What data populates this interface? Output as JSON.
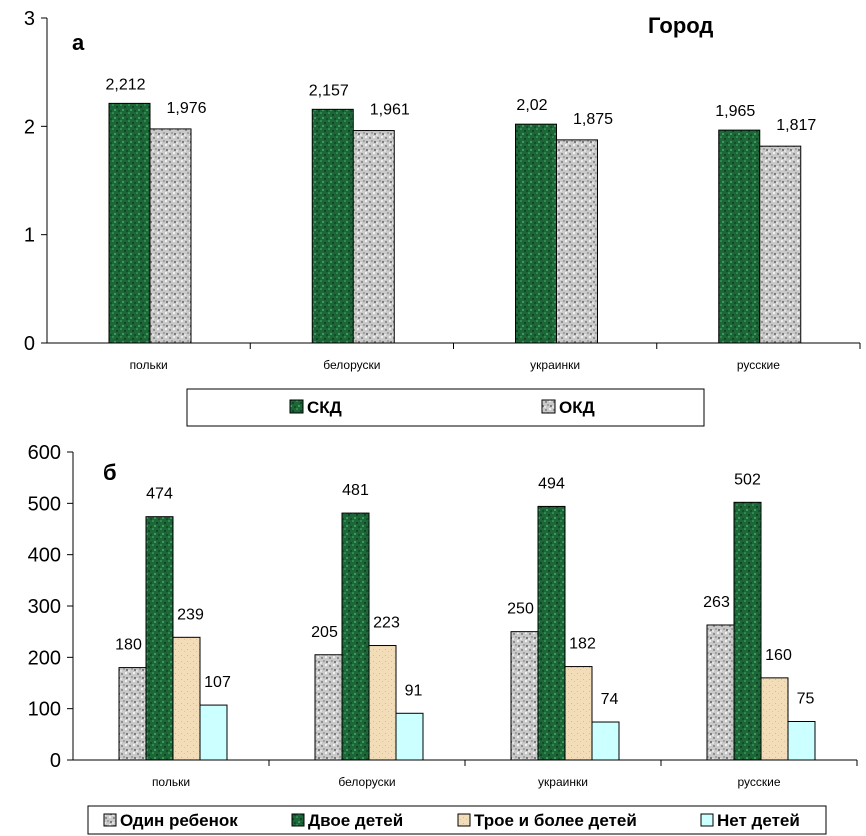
{
  "chart_data": [
    {
      "type": "bar",
      "panel_label": "а",
      "title": "Город",
      "categories": [
        "польки",
        "белоруски",
        "украинки",
        "русские"
      ],
      "series": [
        {
          "name": "СКД",
          "values": [
            2.212,
            2.157,
            2.02,
            1.965
          ],
          "labels": [
            "2,212",
            "2,157",
            "2,02",
            "1,965"
          ],
          "color": "#1f6b3a"
        },
        {
          "name": "ОКД",
          "values": [
            1.976,
            1.961,
            1.875,
            1.817
          ],
          "labels": [
            "1,976",
            "1,961",
            "1,875",
            "1,817"
          ],
          "color": "#c8c8c8"
        }
      ],
      "ylim": [
        0,
        3
      ],
      "yticks": [
        "0",
        "1",
        "2",
        "3"
      ],
      "grid": false,
      "legend_position": "bottom"
    },
    {
      "type": "bar",
      "panel_label": "б",
      "categories": [
        "польки",
        "белоруски",
        "украинки",
        "русские"
      ],
      "series": [
        {
          "name": "Один ребенок",
          "values": [
            180,
            205,
            250,
            263
          ],
          "color": "#bdbdbd"
        },
        {
          "name": "Двое детей",
          "values": [
            474,
            481,
            494,
            502
          ],
          "color": "#1f6b3a"
        },
        {
          "name": "Трое и более детей",
          "values": [
            239,
            223,
            182,
            160
          ],
          "color": "#f2dcb8"
        },
        {
          "name": "Нет детей",
          "values": [
            107,
            91,
            74,
            75
          ],
          "color": "#ccffff"
        }
      ],
      "ylim": [
        0,
        600
      ],
      "yticks": [
        "0",
        "100",
        "200",
        "300",
        "400",
        "500",
        "600"
      ],
      "grid": false,
      "legend_position": "bottom"
    }
  ]
}
